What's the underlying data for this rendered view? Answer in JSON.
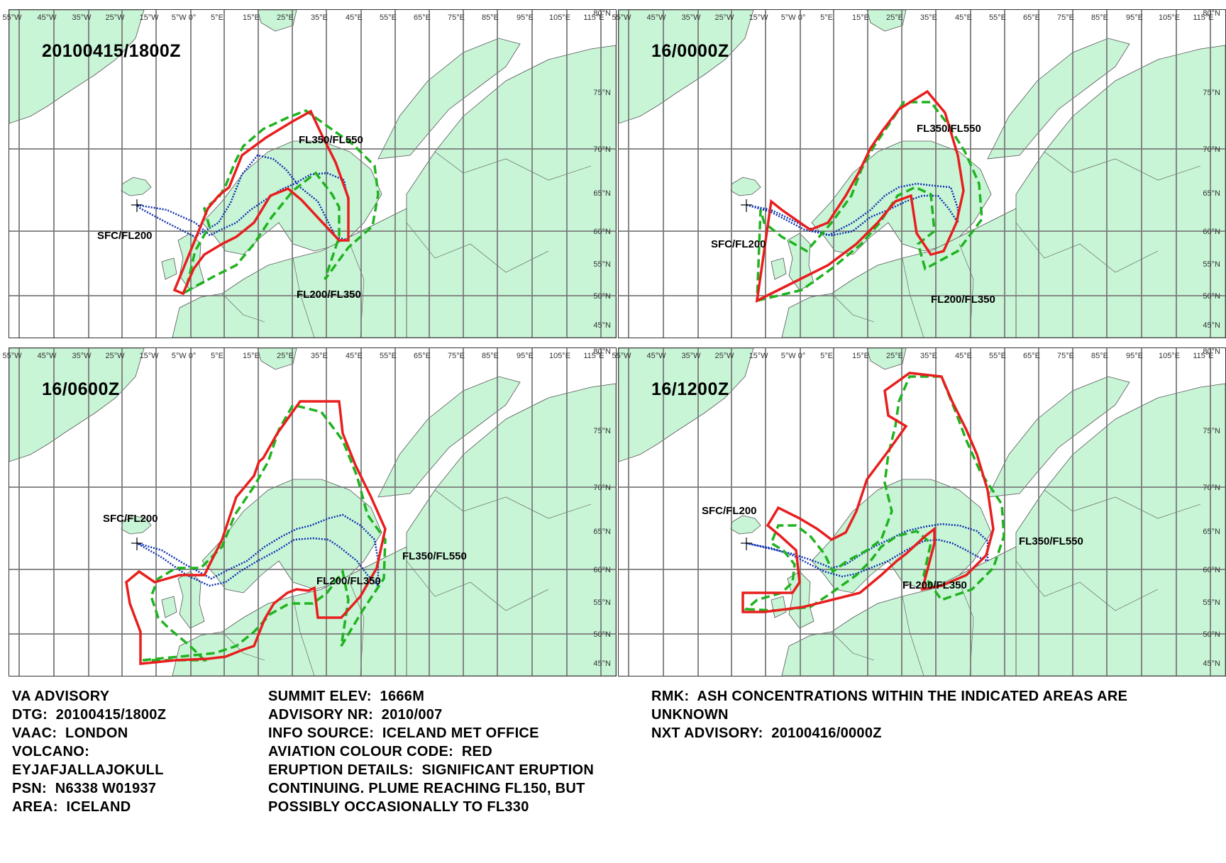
{
  "lon_ticks": [
    "55°W",
    "45°W",
    "35°W",
    "25°W",
    "15°W",
    "5°W 0°",
    "5°E",
    "15°E",
    "25°E",
    "35°E",
    "45°E",
    "55°E",
    "65°E",
    "75°E",
    "85°E",
    "95°E",
    "105°E",
    "115°E"
  ],
  "lat_ticks": [
    "80°N",
    "75°N",
    "70°N",
    "65°N",
    "60°N",
    "55°N",
    "50°N",
    "45°N"
  ],
  "colors": {
    "land": "#c9f5d7",
    "coast": "#555555",
    "grid": "#7a7a7a",
    "sfc_fl200": "#0a2fb0",
    "fl200_fl350": "#1fb31f",
    "fl350_fl550": "#e81e1e"
  },
  "legend": {
    "sfc_fl200": "SFC/FL200",
    "fl200_fl350": "FL200/FL350",
    "fl350_fl550": "FL350/FL550"
  },
  "panels": [
    {
      "time": "20100415/1800Z",
      "labels": {
        "sfc": "SFC/FL200",
        "fl200": "FL200/FL350",
        "fl350": "FL350/FL550"
      }
    },
    {
      "time": "16/0000Z",
      "labels": {
        "sfc": "SFC/FL200",
        "fl200": "FL200/FL350",
        "fl350": "FL350/FL550"
      }
    },
    {
      "time": "16/0600Z",
      "labels": {
        "sfc": "SFC/FL200",
        "fl200": "FL200/FL350",
        "fl350": "FL350/FL550"
      }
    },
    {
      "time": "16/1200Z",
      "labels": {
        "sfc": "SFC/FL200",
        "fl200": "FL200/FL350",
        "fl350": "FL350/FL550"
      }
    }
  ],
  "advisory": {
    "col1": [
      "VA ADVISORY",
      "DTG:  20100415/1800Z",
      "VAAC:  LONDON",
      "VOLCANO:",
      "EYJAFJALLAJOKULL",
      "PSN:  N6338 W01937",
      "AREA:  ICELAND"
    ],
    "col2": [
      "SUMMIT ELEV:  1666M",
      "ADVISORY NR:  2010/007",
      "INFO SOURCE:  ICELAND MET OFFICE",
      "AVIATION COLOUR CODE:  RED",
      "ERUPTION DETAILS:  SIGNIFICANT ERUPTION",
      "CONTINUING. PLUME REACHING FL150, BUT",
      "POSSIBLY OCCASIONALLY TO FL330"
    ],
    "col3": [
      "RMK:  ASH CONCENTRATIONS WITHIN THE INDICATED AREAS ARE",
      "UNKNOWN",
      "NXT ADVISORY:  20100416/0000Z"
    ]
  }
}
